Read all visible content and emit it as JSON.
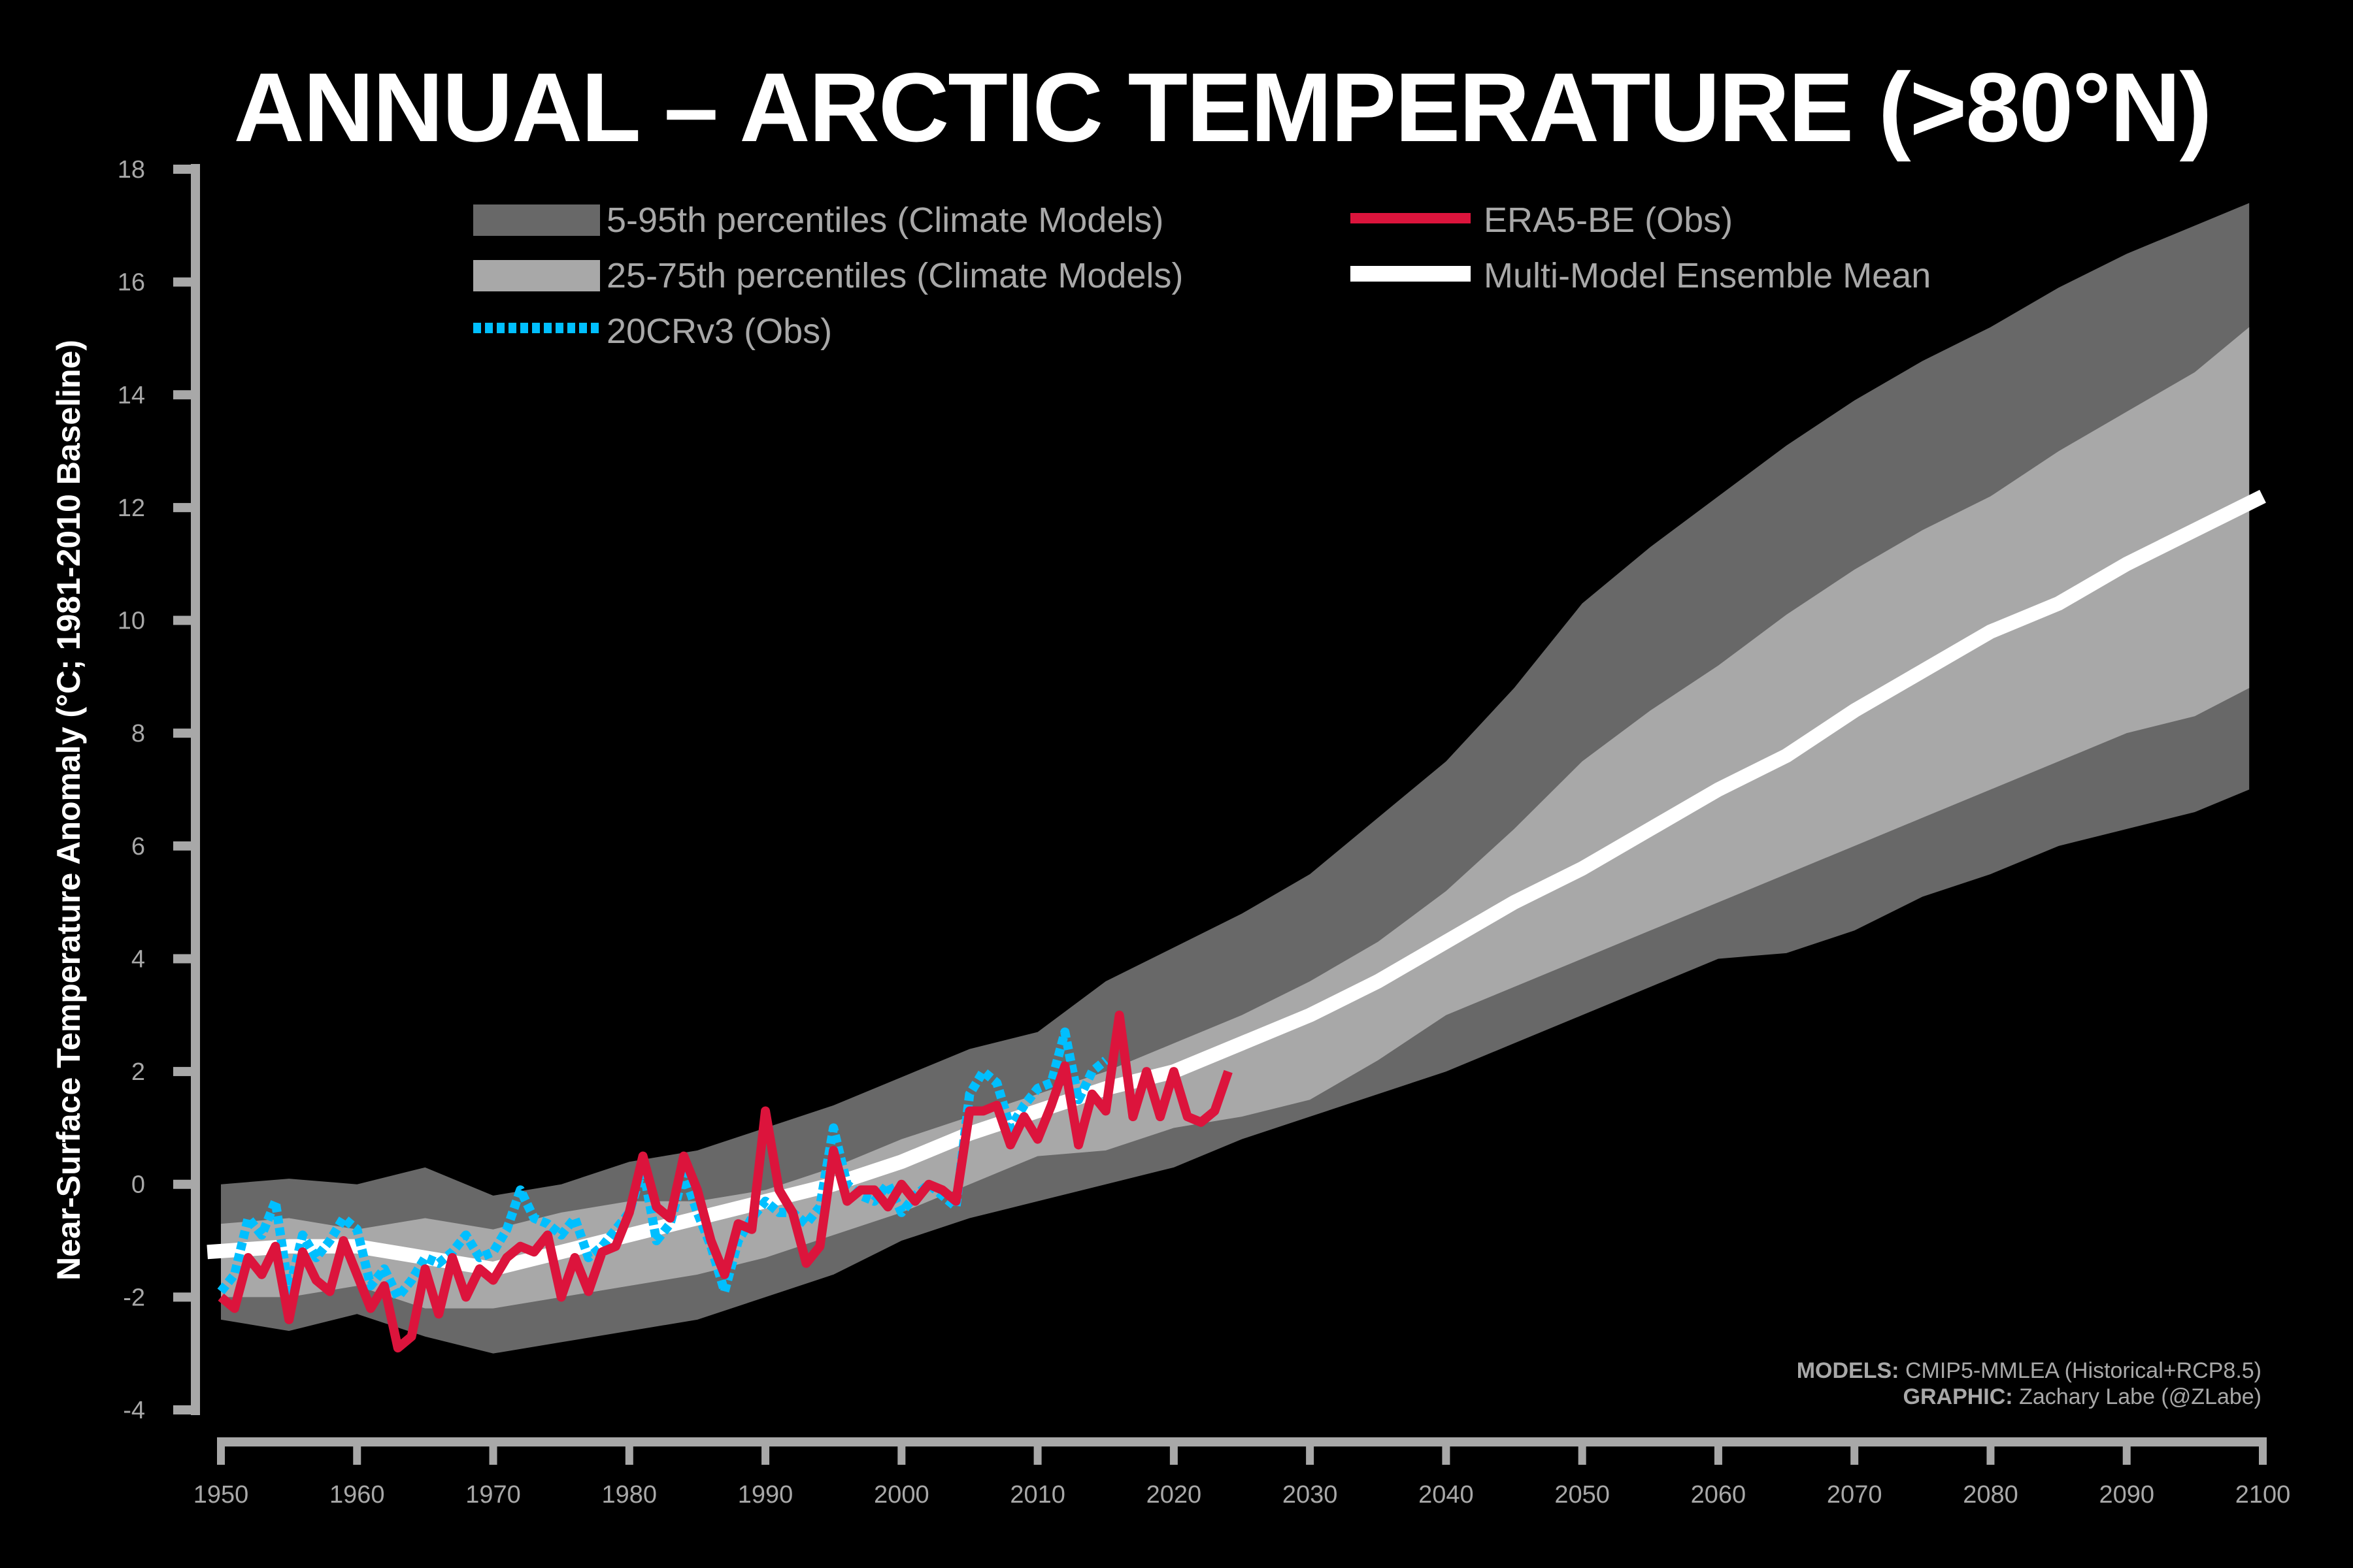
{
  "chart_data": {
    "type": "area",
    "title": "ANNUAL – ARCTIC TEMPERATURE (>80°N)",
    "xlabel": "",
    "ylabel": "Near-Surface Temperature Anomaly (°C; 1981-2010 Baseline)",
    "xlim": [
      1950,
      2100
    ],
    "ylim": [
      -4,
      18
    ],
    "x_ticks": [
      1950,
      1960,
      1970,
      1980,
      1990,
      2000,
      2010,
      2020,
      2030,
      2040,
      2050,
      2060,
      2070,
      2080,
      2090,
      2100
    ],
    "y_ticks": [
      -4,
      -2,
      0,
      2,
      4,
      6,
      8,
      10,
      12,
      14,
      16,
      18
    ],
    "grid": false,
    "legend_position": "top-left",
    "bands": [
      {
        "name": "5-95th percentiles (Climate Models)",
        "color": "#686868",
        "x": [
          1950,
          1955,
          1960,
          1965,
          1970,
          1975,
          1980,
          1985,
          1990,
          1995,
          2000,
          2005,
          2010,
          2015,
          2020,
          2025,
          2030,
          2035,
          2040,
          2045,
          2050,
          2055,
          2060,
          2065,
          2070,
          2075,
          2080,
          2085,
          2090,
          2095,
          2099
        ],
        "lower": [
          -2.4,
          -2.6,
          -2.3,
          -2.7,
          -3.0,
          -2.8,
          -2.6,
          -2.4,
          -2.0,
          -1.6,
          -1.0,
          -0.6,
          -0.3,
          0.0,
          0.3,
          0.8,
          1.2,
          1.6,
          2.0,
          2.5,
          3.0,
          3.5,
          4.0,
          4.1,
          4.5,
          5.1,
          5.5,
          6.0,
          6.3,
          6.6,
          7.0
        ],
        "upper": [
          0.0,
          0.1,
          0.0,
          0.3,
          -0.2,
          0.0,
          0.4,
          0.6,
          1.0,
          1.4,
          1.9,
          2.4,
          2.7,
          3.6,
          4.2,
          4.8,
          5.5,
          6.5,
          7.5,
          8.8,
          10.3,
          11.3,
          12.2,
          13.1,
          13.9,
          14.6,
          15.2,
          15.9,
          16.5,
          17.0,
          17.4
        ]
      },
      {
        "name": "25-75th percentiles (Climate Models)",
        "color": "#a8a8a8",
        "x": [
          1950,
          1955,
          1960,
          1965,
          1970,
          1975,
          1980,
          1985,
          1990,
          1995,
          2000,
          2005,
          2010,
          2015,
          2020,
          2025,
          2030,
          2035,
          2040,
          2045,
          2050,
          2055,
          2060,
          2065,
          2070,
          2075,
          2080,
          2085,
          2090,
          2095,
          2099
        ],
        "lower": [
          -2.0,
          -2.0,
          -1.8,
          -2.2,
          -2.2,
          -2.0,
          -1.8,
          -1.6,
          -1.3,
          -0.9,
          -0.5,
          0.0,
          0.5,
          0.6,
          1.0,
          1.2,
          1.5,
          2.2,
          3.0,
          3.5,
          4.0,
          4.5,
          5.0,
          5.5,
          6.0,
          6.5,
          7.0,
          7.5,
          8.0,
          8.3,
          8.8
        ],
        "upper": [
          -0.7,
          -0.6,
          -0.8,
          -0.6,
          -0.8,
          -0.5,
          -0.3,
          -0.3,
          -0.1,
          0.3,
          0.8,
          1.2,
          1.6,
          2.0,
          2.5,
          3.0,
          3.6,
          4.3,
          5.2,
          6.3,
          7.5,
          8.4,
          9.2,
          10.1,
          10.9,
          11.6,
          12.2,
          13.0,
          13.7,
          14.4,
          15.2
        ]
      }
    ],
    "series": [
      {
        "name": "Multi-Model Ensemble Mean",
        "color": "#ffffff",
        "x": [
          1949,
          1955,
          1960,
          1965,
          1970,
          1975,
          1980,
          1985,
          1990,
          1995,
          2000,
          2005,
          2010,
          2015,
          2020,
          2025,
          2030,
          2035,
          2040,
          2045,
          2050,
          2055,
          2060,
          2065,
          2070,
          2075,
          2080,
          2085,
          2090,
          2095,
          2100
        ],
        "y": [
          -1.2,
          -1.1,
          -1.1,
          -1.3,
          -1.5,
          -1.2,
          -0.9,
          -0.6,
          -0.3,
          0.0,
          0.4,
          0.9,
          1.3,
          1.7,
          2.0,
          2.5,
          3.0,
          3.6,
          4.3,
          5.0,
          5.6,
          6.3,
          7.0,
          7.6,
          8.4,
          9.1,
          9.8,
          10.3,
          11.0,
          11.6,
          12.2
        ]
      },
      {
        "name": "ERA5-BE (Obs)",
        "color": "#dc143c",
        "x": [
          1950,
          1951,
          1952,
          1953,
          1954,
          1955,
          1956,
          1957,
          1958,
          1959,
          1960,
          1961,
          1962,
          1963,
          1964,
          1965,
          1966,
          1967,
          1968,
          1969,
          1970,
          1971,
          1972,
          1973,
          1974,
          1975,
          1976,
          1977,
          1978,
          1979,
          1980,
          1981,
          1982,
          1983,
          1984,
          1985,
          1986,
          1987,
          1988,
          1989,
          1990,
          1991,
          1992,
          1993,
          1994,
          1995,
          1996,
          1997,
          1998,
          1999,
          2000,
          2001,
          2002,
          2003,
          2004,
          2005,
          2006,
          2007,
          2008,
          2009,
          2010,
          2011,
          2012,
          2013,
          2014,
          2015,
          2016,
          2017,
          2018,
          2019,
          2020,
          2021,
          2022,
          2023,
          2024
        ],
        "y": [
          -2.0,
          -2.2,
          -1.3,
          -1.6,
          -1.1,
          -2.4,
          -1.2,
          -1.7,
          -1.9,
          -1.0,
          -1.6,
          -2.2,
          -1.8,
          -2.9,
          -2.7,
          -1.5,
          -2.3,
          -1.3,
          -2.0,
          -1.5,
          -1.7,
          -1.3,
          -1.1,
          -1.2,
          -0.9,
          -2.0,
          -1.3,
          -1.9,
          -1.2,
          -1.1,
          -0.5,
          0.5,
          -0.4,
          -0.6,
          0.5,
          -0.1,
          -1.0,
          -1.6,
          -0.7,
          -0.8,
          1.3,
          -0.1,
          -0.5,
          -1.4,
          -1.1,
          0.6,
          -0.3,
          -0.1,
          -0.1,
          -0.4,
          0.0,
          -0.3,
          0.0,
          -0.1,
          -0.3,
          1.3,
          1.3,
          1.4,
          0.7,
          1.2,
          0.8,
          1.4,
          2.1,
          0.7,
          1.6,
          1.3,
          3.0,
          1.2,
          2.0,
          1.2,
          2.0,
          1.2,
          1.1,
          1.3,
          2.0
        ]
      },
      {
        "name": "20CRv3 (Obs)",
        "color": "#00bfff",
        "dashed": true,
        "x": [
          1950,
          1951,
          1952,
          1953,
          1954,
          1955,
          1956,
          1957,
          1958,
          1959,
          1960,
          1961,
          1962,
          1963,
          1964,
          1965,
          1966,
          1967,
          1968,
          1969,
          1970,
          1971,
          1972,
          1973,
          1974,
          1975,
          1976,
          1977,
          1978,
          1979,
          1980,
          1981,
          1982,
          1983,
          1984,
          1985,
          1986,
          1987,
          1988,
          1989,
          1990,
          1991,
          1992,
          1993,
          1994,
          1995,
          1996,
          1997,
          1998,
          1999,
          2000,
          2001,
          2002,
          2003,
          2004,
          2005,
          2006,
          2007,
          2008,
          2009,
          2010,
          2011,
          2012,
          2013,
          2014,
          2015
        ],
        "y": [
          -1.9,
          -1.6,
          -0.6,
          -0.9,
          -0.3,
          -1.9,
          -0.9,
          -1.3,
          -1.0,
          -0.6,
          -0.8,
          -1.8,
          -1.5,
          -2.0,
          -1.7,
          -1.3,
          -1.4,
          -1.2,
          -0.9,
          -1.3,
          -1.2,
          -0.8,
          -0.1,
          -0.6,
          -0.7,
          -0.9,
          -0.6,
          -1.3,
          -1.1,
          -0.8,
          -0.5,
          0.3,
          -1.0,
          -0.7,
          0.2,
          -0.5,
          -1.1,
          -1.9,
          -1.0,
          -0.6,
          -0.3,
          -0.5,
          -0.5,
          -0.7,
          -0.4,
          1.0,
          0.0,
          -0.2,
          -0.3,
          0.0,
          -0.5,
          -0.2,
          0.0,
          -0.2,
          -0.4,
          1.6,
          2.0,
          1.8,
          1.0,
          1.4,
          1.7,
          1.8,
          2.7,
          1.5,
          2.0,
          2.2
        ]
      }
    ],
    "annotations": [
      "MODELS: CMIP5-MMLEA (Historical+RCP8.5)",
      "GRAPHIC: Zachary Labe (@ZLabe)"
    ]
  },
  "legend": {
    "band_5_95": "5-95th percentiles (Climate Models)",
    "band_25_75": "25-75th percentiles (Climate Models)",
    "cr20": "20CRv3 (Obs)",
    "era5": "ERA5-BE (Obs)",
    "mean": "Multi-Model Ensemble Mean"
  },
  "credits": {
    "models_label": "MODELS:",
    "models_value": "CMIP5-MMLEA (Historical+RCP8.5)",
    "graphic_label": "GRAPHIC:",
    "graphic_value": "Zachary Labe (@ZLabe)"
  }
}
